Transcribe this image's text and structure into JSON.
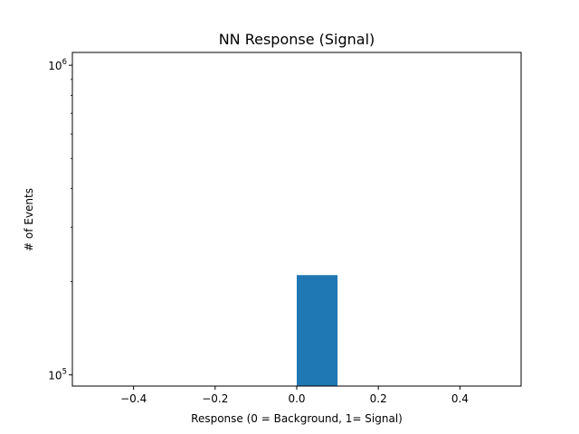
{
  "chart_data": {
    "type": "bar",
    "title": "NN Response (Signal)",
    "xlabel": "Response (0 = Background, 1= Signal)",
    "ylabel": "# of Events",
    "yscale": "log",
    "xlim": [
      -0.55,
      0.55
    ],
    "ylim": [
      92000,
      1100000
    ],
    "grid": false,
    "x_ticks": [
      {
        "value": -0.4,
        "label": "−0.4"
      },
      {
        "value": -0.2,
        "label": "−0.2"
      },
      {
        "value": 0.0,
        "label": "0.0"
      },
      {
        "value": 0.2,
        "label": "0.2"
      },
      {
        "value": 0.4,
        "label": "0.4"
      }
    ],
    "y_ticks": [
      {
        "value": 100000,
        "base": "10",
        "exp": "5"
      },
      {
        "value": 1000000,
        "base": "10",
        "exp": "6"
      }
    ],
    "bins": [
      {
        "x0": 0.0,
        "x1": 0.1,
        "value": 210000
      }
    ],
    "colors": {
      "bar": "#1f77b4"
    }
  }
}
